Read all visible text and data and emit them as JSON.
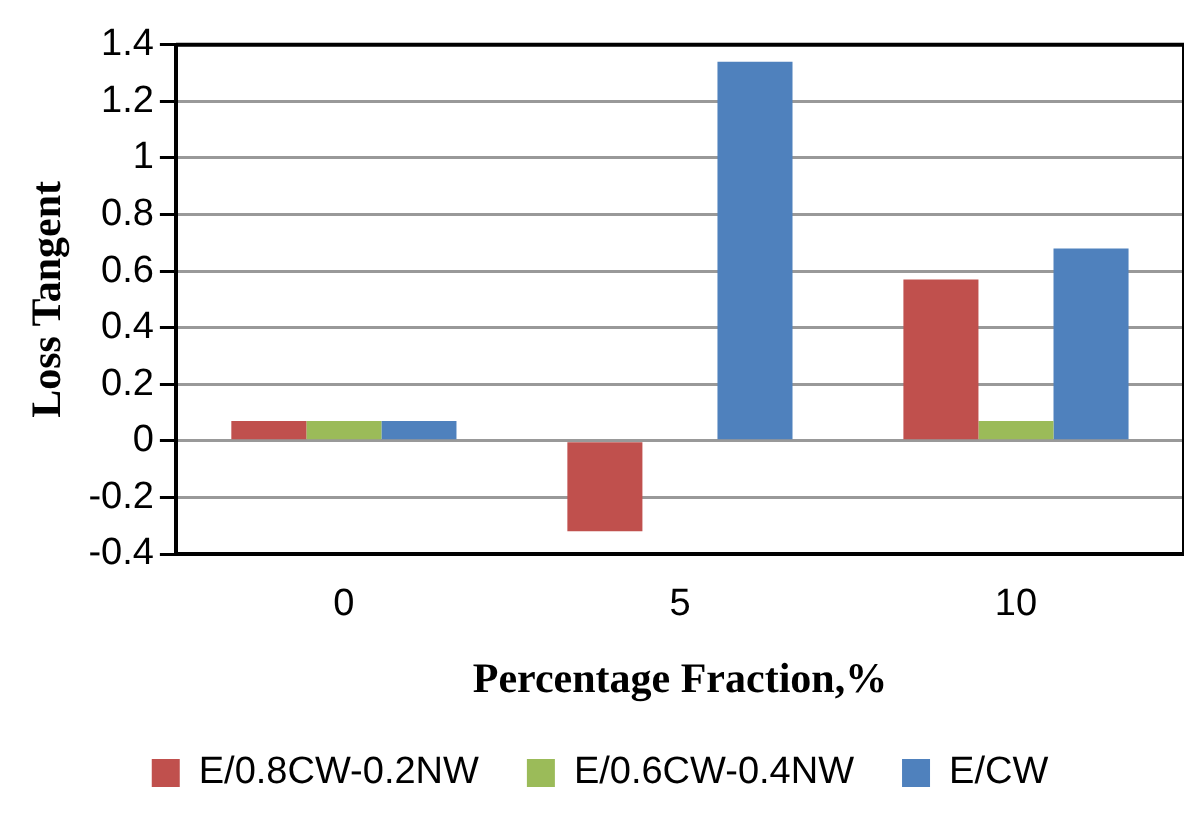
{
  "chart_data": {
    "type": "bar",
    "xlabel": "Percentage Fraction,%",
    "ylabel": "Loss Tangent",
    "categories": [
      "0",
      "5",
      "10"
    ],
    "series": [
      {
        "name": "E/0.8CW-0.2NW",
        "color": "#c0504d",
        "values": [
          0.07,
          -0.32,
          0.57
        ]
      },
      {
        "name": "E/0.6CW-0.4NW",
        "color": "#9bbb59",
        "values": [
          0.07,
          null,
          0.07
        ]
      },
      {
        "name": "E/CW",
        "color": "#4f81bd",
        "values": [
          0.07,
          1.34,
          0.68
        ]
      }
    ],
    "ylim": [
      -0.4,
      1.4
    ],
    "yticks": [
      -0.4,
      -0.2,
      0,
      0.2,
      0.4,
      0.6,
      0.8,
      1,
      1.2,
      1.4
    ],
    "grid": "y",
    "legend": "bottom"
  }
}
